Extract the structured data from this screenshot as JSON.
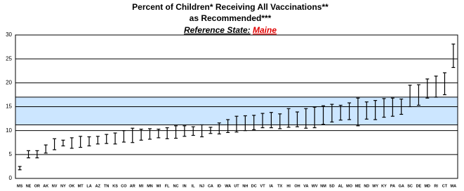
{
  "chart_data": {
    "type": "errorbar",
    "title": "Percent of Children* Receiving All Vaccinations**",
    "subtitle": "as Recommended***",
    "reference_label": "Reference State:",
    "reference_state": "Maine",
    "categories": [
      "MS",
      "NE",
      "OR",
      "AK",
      "NV",
      "NY",
      "OK",
      "MT",
      "LA",
      "AZ",
      "TN",
      "KS",
      "CO",
      "AR",
      "MI",
      "MN",
      "WI",
      "FL",
      "NC",
      "IN",
      "IL",
      "NJ",
      "CA",
      "ID",
      "WA",
      "UT",
      "NH",
      "DC",
      "VT",
      "IA",
      "TX",
      "HI",
      "OH",
      "VA",
      "WV",
      "NM",
      "SD",
      "AL",
      "MO",
      "ME",
      "ND",
      "WY",
      "KY",
      "PA",
      "GA",
      "SC",
      "DE",
      "MD",
      "RI",
      "CT",
      "MA"
    ],
    "low": [
      1.8,
      4.3,
      4.3,
      5.3,
      6.0,
      6.8,
      6.3,
      6.5,
      6.8,
      7.2,
      7.3,
      7.2,
      7.6,
      7.5,
      8.0,
      8.2,
      8.5,
      8.3,
      8.4,
      8.8,
      9.0,
      8.7,
      9.4,
      9.3,
      9.6,
      9.7,
      10.0,
      10.2,
      10.6,
      10.6,
      10.4,
      10.7,
      10.8,
      10.5,
      10.6,
      11.3,
      11.8,
      12.2,
      12.3,
      11.0,
      12.4,
      12.3,
      12.8,
      13.0,
      13.4,
      15.0,
      15.3,
      16.8,
      17.0,
      17.5,
      23.2
    ],
    "high": [
      2.5,
      5.8,
      5.8,
      7.0,
      8.3,
      8.0,
      8.5,
      8.8,
      8.7,
      8.8,
      9.2,
      9.5,
      10.0,
      10.5,
      10.3,
      10.4,
      10.3,
      10.6,
      11.0,
      11.0,
      10.8,
      11.2,
      10.7,
      11.6,
      12.3,
      13.0,
      13.1,
      13.2,
      13.6,
      13.8,
      13.5,
      14.6,
      13.9,
      14.6,
      14.9,
      15.2,
      15.5,
      15.3,
      15.8,
      16.8,
      16.0,
      16.3,
      16.7,
      16.8,
      16.6,
      19.5,
      19.6,
      20.8,
      21.4,
      22.1,
      28.1
    ],
    "color": "#000000",
    "reference_band": [
      11.2,
      17
    ],
    "band_color": "#cce6ff",
    "ylim": [
      0,
      30
    ],
    "yticks": [
      0,
      5,
      10,
      15,
      20,
      25,
      30
    ],
    "grid": true
  }
}
